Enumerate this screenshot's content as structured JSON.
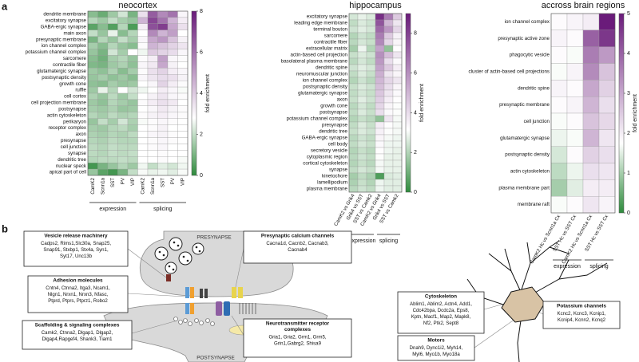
{
  "panel_labels": [
    "a",
    "b"
  ],
  "chart_data": [
    {
      "type": "heatmap",
      "title": "neocortex",
      "colorbar_label": "fold enrichment",
      "colors": [
        "#2e8b3c",
        "#ffffff",
        "#6a1b7a"
      ],
      "zlim": [
        0,
        8
      ],
      "zticks": [
        0,
        2,
        4,
        6,
        8
      ],
      "rows": [
        "dendrite membrane",
        "excitatory synapse",
        "GABA-ergic synapse",
        "main axon",
        "presynaptic membrane",
        "ion channel complex",
        "potassium channel complex",
        "sarcomere",
        "contractile fiber",
        "glutamatergic synapse",
        "postsynaptic density",
        "growth cone",
        "ruffle",
        "cell cortex",
        "cell projection membrane",
        "postsynapse",
        "actin cytoskeleton",
        "perikaryon",
        "receptor complex",
        "axon",
        "presynapse",
        "cell junction",
        "synapse",
        "dendritic tree",
        "nuclear speck",
        "apical part of cell"
      ],
      "groups": [
        {
          "name": "expression",
          "columns": [
            "CamK2",
            "Scnn1a",
            "SST",
            "PV",
            "VIP"
          ]
        },
        {
          "name": "splicing",
          "columns": [
            "CamK2",
            "Scnn1a",
            "SST",
            "PV",
            "VIP"
          ]
        }
      ],
      "values": [
        [
          1.2,
          0.8,
          1.5,
          2.2,
          1.0,
          3.5,
          6.5,
          5.5,
          6.0,
          3.0
        ],
        [
          1.8,
          1.5,
          2.0,
          1.6,
          1.4,
          4.5,
          7.0,
          6.0,
          4.5,
          3.2
        ],
        [
          0.6,
          1.2,
          0.5,
          1.8,
          0.4,
          3.2,
          6.8,
          7.2,
          4.8,
          3.5
        ],
        [
          2.0,
          1.4,
          2.5,
          1.2,
          1.8,
          2.8,
          5.5,
          4.5,
          5.0,
          2.8
        ],
        [
          1.0,
          1.8,
          1.4,
          2.0,
          1.6,
          3.0,
          4.8,
          5.2,
          4.2,
          3.1
        ],
        [
          1.6,
          1.2,
          1.8,
          1.4,
          1.2,
          2.9,
          4.5,
          4.2,
          3.8,
          3.4
        ],
        [
          1.4,
          1.0,
          2.2,
          1.6,
          2.8,
          2.6,
          4.0,
          3.8,
          3.6,
          3.0
        ],
        [
          1.2,
          0.9,
          1.6,
          1.8,
          1.4,
          2.9,
          3.2,
          5.0,
          3.0,
          2.9
        ],
        [
          1.1,
          1.0,
          1.5,
          1.7,
          1.3,
          3.0,
          3.3,
          4.8,
          3.1,
          2.8
        ],
        [
          1.5,
          1.3,
          1.7,
          1.2,
          1.6,
          2.9,
          3.5,
          3.8,
          3.2,
          3.0
        ],
        [
          1.4,
          1.6,
          1.3,
          1.5,
          1.2,
          3.0,
          3.4,
          3.6,
          3.5,
          3.1
        ],
        [
          1.3,
          1.2,
          1.6,
          1.4,
          1.5,
          2.8,
          3.0,
          3.8,
          3.2,
          2.9
        ],
        [
          1.5,
          2.5,
          1.8,
          2.8,
          2.2,
          2.6,
          2.8,
          3.2,
          3.0,
          2.7
        ],
        [
          1.7,
          1.4,
          1.9,
          1.5,
          2.0,
          2.8,
          3.1,
          3.4,
          3.0,
          2.9
        ],
        [
          1.5,
          1.3,
          1.8,
          1.6,
          1.4,
          2.9,
          3.2,
          3.5,
          3.3,
          2.8
        ],
        [
          1.6,
          1.5,
          1.7,
          1.4,
          1.5,
          2.8,
          3.0,
          3.3,
          3.1,
          2.9
        ],
        [
          1.8,
          1.6,
          1.9,
          1.7,
          1.8,
          2.9,
          3.1,
          3.2,
          3.0,
          2.9
        ],
        [
          1.4,
          2.0,
          1.6,
          2.2,
          1.7,
          2.7,
          2.9,
          3.0,
          2.9,
          2.8
        ],
        [
          1.6,
          1.5,
          1.8,
          1.9,
          1.6,
          2.8,
          2.9,
          3.1,
          2.8,
          2.8
        ],
        [
          1.7,
          1.6,
          1.8,
          1.7,
          1.9,
          2.8,
          3.0,
          3.1,
          2.9,
          2.8
        ],
        [
          1.8,
          1.7,
          1.9,
          1.8,
          1.8,
          2.8,
          2.9,
          3.0,
          2.9,
          2.8
        ],
        [
          1.9,
          1.8,
          2.0,
          1.9,
          1.9,
          2.8,
          2.9,
          3.0,
          2.8,
          2.8
        ],
        [
          1.9,
          1.8,
          2.0,
          1.9,
          2.0,
          2.8,
          2.8,
          2.9,
          2.8,
          2.8
        ],
        [
          1.8,
          1.9,
          1.9,
          2.0,
          1.9,
          2.8,
          2.8,
          2.9,
          2.8,
          2.7
        ],
        [
          0.3,
          1.0,
          1.4,
          1.8,
          1.5,
          2.6,
          2.0,
          2.4,
          2.2,
          2.6
        ],
        [
          1.4,
          0.6,
          0.3,
          1.0,
          2.0,
          2.7,
          2.5,
          2.6,
          2.4,
          2.7
        ]
      ]
    },
    {
      "type": "heatmap",
      "title": "hippocampus",
      "colorbar_label": "fold enrichment",
      "colors": [
        "#2e8b3c",
        "#ffffff",
        "#6a1b7a"
      ],
      "zlim": [
        0,
        9
      ],
      "zticks": [
        0,
        2,
        4,
        6,
        8
      ],
      "rows": [
        "excitatory synapse",
        "leading edge membrane",
        "terminal bouton",
        "sarcomere",
        "contractile fiber",
        "extracellular matrix",
        "actin-based cell projection",
        "basolateral plasma membrane",
        "dendritic spine",
        "neuromuscular junction",
        "ion channel complex",
        "postsynaptic density",
        "glutamatergic synapse",
        "axon",
        "growth cone",
        "postsynapse",
        "potassium channel complex",
        "presynapse",
        "dendritic tree",
        "GABA-ergic synapse",
        "cell body",
        "secretory vesicle",
        "cytoplasmic region",
        "cortical cytoskeleton",
        "synapse",
        "kinetochore",
        "lamellipodium",
        "plasma membrane"
      ],
      "groups": [
        {
          "name": "expression",
          "columns": [
            "CamK2 vs Grik4",
            "Grik4 vs SST",
            "SST vs Camk2"
          ]
        },
        {
          "name": "splicing",
          "columns": [
            "CamK2 vs Grik4",
            "Grik4 vs SST",
            "SST vs Camk2"
          ]
        }
      ],
      "values": [
        [
          2.5,
          2.8,
          2.6,
          8.5,
          6.5,
          4.5
        ],
        [
          2.2,
          2.6,
          2.4,
          7.5,
          5.0,
          3.8
        ],
        [
          2.4,
          2.7,
          2.5,
          7.0,
          5.8,
          4.2
        ],
        [
          2.0,
          2.4,
          2.2,
          6.5,
          4.5,
          3.5
        ],
        [
          2.1,
          2.5,
          2.3,
          6.2,
          4.2,
          3.4
        ],
        [
          1.8,
          2.9,
          2.0,
          5.5,
          1.5,
          3.2
        ],
        [
          2.3,
          2.6,
          2.4,
          6.0,
          4.8,
          3.8
        ],
        [
          2.1,
          2.5,
          2.2,
          5.8,
          4.0,
          3.3
        ],
        [
          2.4,
          2.7,
          2.5,
          5.5,
          4.5,
          3.6
        ],
        [
          2.2,
          2.6,
          2.3,
          5.2,
          3.8,
          3.4
        ],
        [
          2.0,
          2.4,
          2.1,
          5.0,
          4.2,
          3.8
        ],
        [
          2.3,
          2.6,
          2.4,
          4.8,
          4.0,
          3.4
        ],
        [
          2.2,
          2.5,
          2.3,
          4.6,
          3.8,
          3.3
        ],
        [
          2.3,
          2.7,
          2.4,
          4.4,
          3.6,
          3.2
        ],
        [
          2.1,
          2.5,
          2.2,
          4.2,
          3.4,
          3.1
        ],
        [
          2.2,
          2.6,
          2.3,
          4.0,
          3.3,
          3.1
        ],
        [
          2.0,
          2.3,
          2.1,
          1.5,
          3.8,
          3.0
        ],
        [
          2.2,
          2.6,
          2.3,
          3.6,
          3.2,
          3.0
        ],
        [
          2.3,
          2.6,
          2.4,
          3.5,
          3.1,
          3.0
        ],
        [
          2.1,
          2.4,
          2.2,
          3.4,
          3.0,
          2.9
        ],
        [
          2.2,
          2.5,
          2.3,
          3.3,
          2.9,
          2.9
        ],
        [
          2.0,
          2.3,
          2.1,
          3.2,
          2.9,
          2.8
        ],
        [
          2.1,
          2.4,
          2.2,
          3.1,
          2.8,
          2.8
        ],
        [
          2.0,
          2.3,
          2.1,
          3.0,
          2.8,
          2.8
        ],
        [
          2.2,
          2.5,
          2.3,
          3.0,
          2.8,
          2.8
        ],
        [
          1.8,
          2.2,
          1.9,
          0.5,
          2.6,
          2.7
        ],
        [
          1.9,
          2.3,
          2.0,
          2.9,
          2.7,
          2.7
        ],
        [
          2.1,
          2.4,
          2.2,
          2.9,
          2.7,
          2.7
        ]
      ]
    },
    {
      "type": "heatmap",
      "title": "accross brain regions",
      "colorbar_label": "fold enrichment",
      "colors": [
        "#2e8b3c",
        "#ffffff",
        "#6a1b7a"
      ],
      "zlim": [
        0,
        5
      ],
      "zticks": [
        0,
        1,
        2,
        3,
        4,
        5
      ],
      "rows": [
        "ion channel complex",
        "presynaptic active zone",
        "phagocytic vesicle",
        "cluster of actin-based cell projections",
        "dendritic spine",
        "presynaptic membrane",
        "cell junction",
        "glutamatergic synapse",
        "postsynaptic density",
        "actin cytoskeleton",
        "plasma membrane part",
        "membrane raft"
      ],
      "groups": [
        {
          "name": "expression",
          "columns": [
            "CamK2 Hc vs Scnn1a Cx",
            "SST Hc vs SST Cx"
          ]
        },
        {
          "name": "splicing",
          "columns": [
            "CamK2 Hc vs Scnn1a Cx",
            "SST Hc vs SST Cx"
          ]
        }
      ],
      "values": [
        [
          1.8,
          1.9,
          2.0,
          5.0
        ],
        [
          1.9,
          1.8,
          4.0,
          4.6
        ],
        [
          1.8,
          1.7,
          3.6,
          3.2
        ],
        [
          1.7,
          1.9,
          3.4,
          2.6
        ],
        [
          1.9,
          1.8,
          3.0,
          2.4
        ],
        [
          1.8,
          1.9,
          2.8,
          2.2
        ],
        [
          1.7,
          1.8,
          2.6,
          2.3
        ],
        [
          1.6,
          1.7,
          2.8,
          2.1
        ],
        [
          1.4,
          1.8,
          2.4,
          2.2
        ],
        [
          1.2,
          1.6,
          2.2,
          2.1
        ],
        [
          1.0,
          1.5,
          2.0,
          2.0
        ],
        [
          1.7,
          1.8,
          2.1,
          1.9
        ]
      ]
    }
  ],
  "panel_b": {
    "presynapse": "PRESYNAPSE",
    "postsynapse": "POSTSYNAPSE",
    "boxes": [
      {
        "title": [
          "Vesicle release machinery"
        ],
        "lines": [
          "Cadps2, Rims1,Slc30a, Snap25,",
          "Snap91, Stxbp1, Stx4a, Syn1,",
          "Syt17, Unc13b"
        ]
      },
      {
        "title": [
          "Adhesion molecules"
        ],
        "lines": [
          "Cntn4, Ctnna2, Itga3, Ncam1,",
          "Nlgn1, Nrxn1, Nrxn3, Nfasc,",
          "Ptprd, Ptprs, Ptprz1, Robo2"
        ]
      },
      {
        "title": [
          "Scaffolding & signaling complexes"
        ],
        "lines": [
          "Camk2, Ctnna2, Dlgap1, Dlgap2,",
          "Dlgap4,Rapgef4, Shank3, Tiam1"
        ]
      },
      {
        "title": [
          "Presynaptic calcium channels"
        ],
        "lines": [
          "Cacna1d, Cacnb2, Cacnab3,",
          "Cacnab4"
        ]
      },
      {
        "title": [
          "Neurotransmitter receptor",
          "complexes"
        ],
        "lines": [
          "Gria1, Gria2, Grm1, Grm5,",
          "Grin1,Gabrg2, Shisa9"
        ]
      },
      {
        "title": [
          "Cytoskeleton"
        ],
        "lines": [
          "Ablim1, Ablim2, Actn4, Add1,",
          "Cdc42bpa, Dcdc2a, Eps8,",
          "Kptn, Macf1, Map2, Mapk8,",
          "Nf2, Ptk2, Sept8"
        ]
      },
      {
        "title": [
          "Potassium channels"
        ],
        "lines": [
          "Kcnc2, Kcnc3, Kcnip1,",
          "Kcnip4, Kcnn2, Kcnq2"
        ]
      },
      {
        "title": [
          "Motors"
        ],
        "lines": [
          "Dnah9, Dync1i2, Myh14,",
          "Myl6, Myo1b, Myo18a"
        ]
      }
    ]
  }
}
